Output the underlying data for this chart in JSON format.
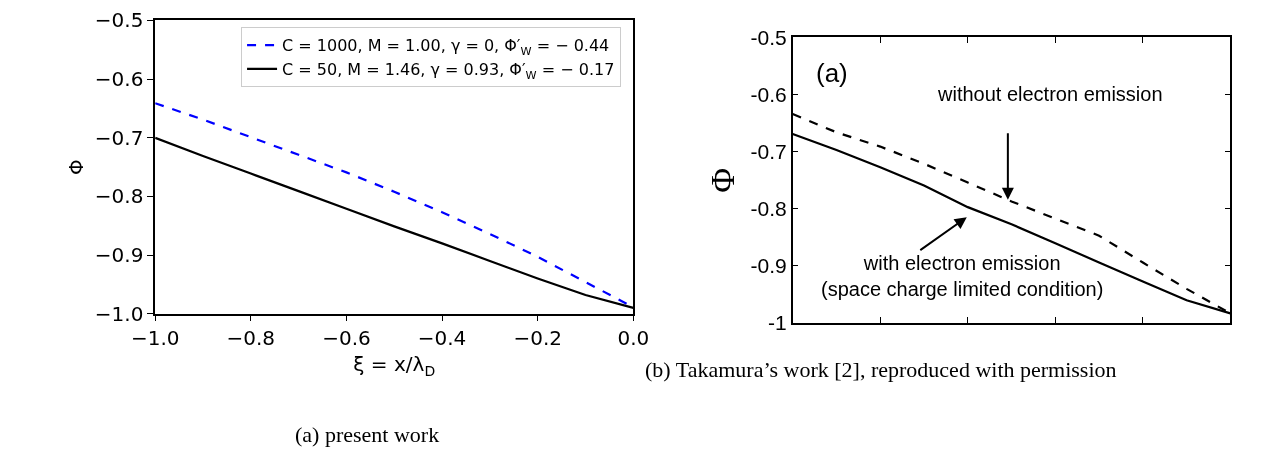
{
  "chart_data": [
    {
      "type": "line",
      "xlabel": "ξ = x/λ$_{D}$",
      "ylabel": "Φ",
      "x": [
        -1.0,
        -0.9,
        -0.8,
        -0.7,
        -0.6,
        -0.5,
        -0.4,
        -0.3,
        -0.2,
        -0.1,
        0.0
      ],
      "series": [
        {
          "name": "C = 1000, M = 1.00, γ = 0, Φ′$_{W}$ = − 0.44",
          "color": "#0000ff",
          "line_style": "dashed",
          "values": [
            -0.641,
            -0.669,
            -0.699,
            -0.729,
            -0.759,
            -0.792,
            -0.827,
            -0.864,
            -0.903,
            -0.946,
            -0.989
          ]
        },
        {
          "name": "C = 50, M = 1.46, γ = 0.93, Φ′$_{W}$ = − 0.17",
          "color": "#000000",
          "line_style": "solid",
          "values": [
            -0.7,
            -0.731,
            -0.761,
            -0.791,
            -0.821,
            -0.851,
            -0.88,
            -0.91,
            -0.94,
            -0.968,
            -0.99
          ]
        }
      ],
      "xlim": [
        -1.0,
        0.0
      ],
      "ylim": [
        -1.0,
        -0.5
      ],
      "xticks": [
        {
          "value": -1.0,
          "label": "−1.0"
        },
        {
          "value": -0.8,
          "label": "−0.8"
        },
        {
          "value": -0.6,
          "label": "−0.6"
        },
        {
          "value": -0.4,
          "label": "−0.4"
        },
        {
          "value": -0.2,
          "label": "−0.2"
        },
        {
          "value": 0.0,
          "label": "0.0"
        }
      ],
      "yticks": [
        {
          "value": -1.0,
          "label": "−1.0"
        },
        {
          "value": -0.9,
          "label": "−0.9"
        },
        {
          "value": -0.8,
          "label": "−0.8"
        },
        {
          "value": -0.7,
          "label": "−0.7"
        },
        {
          "value": -0.6,
          "label": "−0.6"
        },
        {
          "value": -0.5,
          "label": "−0.5"
        }
      ],
      "legend": "top right",
      "marker": "none",
      "annotations": [
        "(a) present work"
      ]
    },
    {
      "type": "line",
      "ylabel": "Φ",
      "categories": [
        null,
        null,
        null,
        null,
        null,
        null,
        null,
        null,
        null,
        null,
        null
      ],
      "series": [
        {
          "color": "#000000",
          "line_style": "dashed",
          "values": [
            -0.634,
            -0.666,
            -0.691,
            -0.721,
            -0.754,
            -0.787,
            -0.817,
            -0.847,
            -0.894,
            -0.94,
            -0.983
          ]
        },
        {
          "color": "#000000",
          "line_style": "solid",
          "values": [
            -0.669,
            -0.697,
            -0.727,
            -0.759,
            -0.797,
            -0.827,
            -0.86,
            -0.894,
            -0.927,
            -0.96,
            -0.983
          ]
        }
      ],
      "ylim": [
        -1,
        -0.5
      ],
      "yticks": [
        -1,
        -0.9,
        -0.8,
        -0.7,
        -0.6,
        -0.5
      ],
      "tick_labels": "y",
      "legend": false,
      "marker": "none",
      "annotations": [
        "(a)",
        "without electron emission",
        "with electron emission\n(space charge limited condition)",
        "(b) Takamura’s work [2], reproduced with permission"
      ]
    }
  ]
}
